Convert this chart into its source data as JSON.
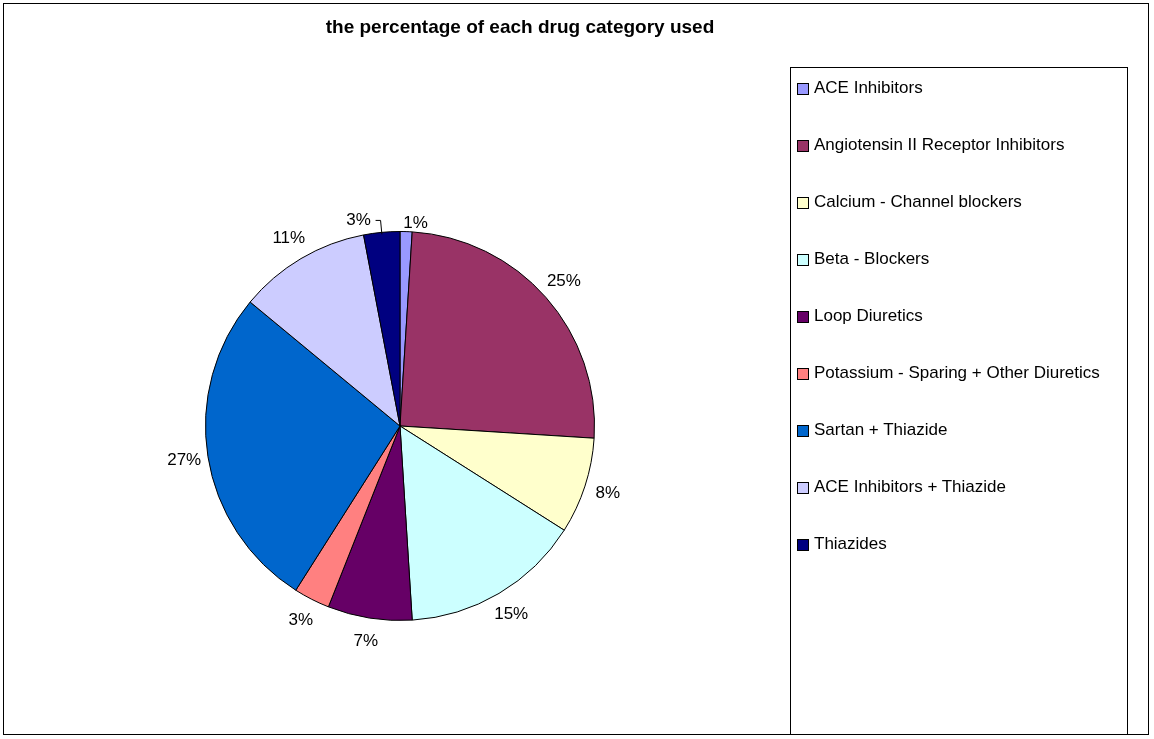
{
  "chart_data": {
    "type": "pie",
    "title": "the percentage of each drug category used",
    "categories": [
      "ACE Inhibitors",
      "Angiotensin II Receptor Inhibitors",
      "Calcium - Channel blockers",
      "Beta - Blockers",
      "Loop Diuretics",
      "Potassium - Sparing + Other Diuretics",
      "Sartan + Thiazide",
      "ACE Inhibitors + Thiazide",
      "Thiazides"
    ],
    "values": [
      1,
      25,
      8,
      15,
      7,
      3,
      27,
      11,
      3
    ],
    "colors": [
      "#9999ff",
      "#993366",
      "#ffffcc",
      "#ccffff",
      "#660066",
      "#ff8080",
      "#0066cc",
      "#ccccff",
      "#000080"
    ],
    "value_labels": [
      "1%",
      "25%",
      "8%",
      "15%",
      "7%",
      "3%",
      "27%",
      "11%",
      "3%"
    ],
    "legend": "right"
  }
}
